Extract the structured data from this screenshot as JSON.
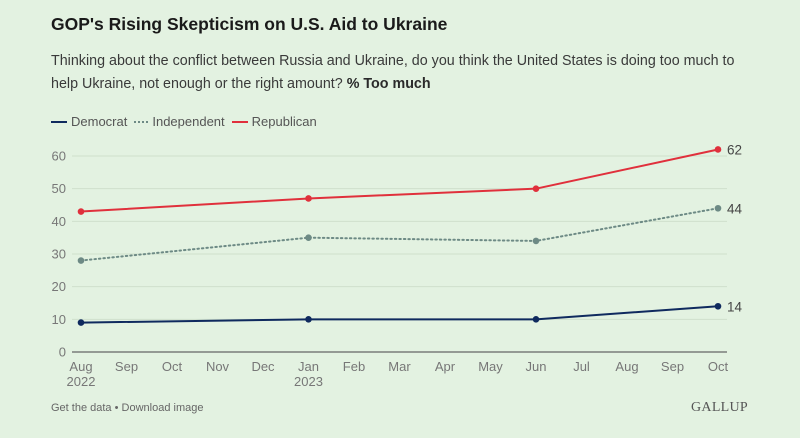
{
  "title": "GOP's Rising Skepticism on U.S. Aid to Ukraine",
  "subtitle_text": "Thinking about the conflict between Russia and Ukraine, do you think the United States is doing too much to help Ukraine, not enough or the right amount?",
  "subtitle_bold": "% Too much",
  "footer": {
    "get_data": "Get the data",
    "separator": "•",
    "download": "Download image",
    "brand": "GALLUP"
  },
  "chart_data": {
    "type": "line",
    "title": "GOP's Rising Skepticism on U.S. Aid to Ukraine",
    "ylabel": "% Too much",
    "xlabel": "",
    "ylim": [
      0,
      60
    ],
    "yticks": [
      0,
      10,
      20,
      30,
      40,
      50,
      60
    ],
    "grid": true,
    "legend_position": "top-left",
    "x_ticks": [
      {
        "month": 0,
        "label": "Aug",
        "year": "2022"
      },
      {
        "month": 1,
        "label": "Sep",
        "year": ""
      },
      {
        "month": 2,
        "label": "Oct",
        "year": ""
      },
      {
        "month": 3,
        "label": "Nov",
        "year": ""
      },
      {
        "month": 4,
        "label": "Dec",
        "year": ""
      },
      {
        "month": 5,
        "label": "Jan",
        "year": "2023"
      },
      {
        "month": 6,
        "label": "Feb",
        "year": ""
      },
      {
        "month": 7,
        "label": "Mar",
        "year": ""
      },
      {
        "month": 8,
        "label": "Apr",
        "year": ""
      },
      {
        "month": 9,
        "label": "May",
        "year": ""
      },
      {
        "month": 10,
        "label": "Jun",
        "year": ""
      },
      {
        "month": 11,
        "label": "Jul",
        "year": ""
      },
      {
        "month": 12,
        "label": "Aug",
        "year": ""
      },
      {
        "month": 13,
        "label": "Sep",
        "year": ""
      },
      {
        "month": 14,
        "label": "Oct",
        "year": ""
      }
    ],
    "x": [
      "Aug 2022",
      "Jan 2023",
      "Jun 2023",
      "Oct 2023"
    ],
    "x_month_index": [
      0,
      5,
      10,
      14
    ],
    "series": [
      {
        "name": "Democrat",
        "color": "#0f2a5e",
        "style": "solid",
        "values": [
          9,
          10,
          10,
          14
        ],
        "end_label": "14"
      },
      {
        "name": "Independent",
        "color": "#6d8a85",
        "style": "dotted",
        "values": [
          28,
          35,
          34,
          44
        ],
        "end_label": "44"
      },
      {
        "name": "Republican",
        "color": "#e0303c",
        "style": "solid",
        "values": [
          43,
          47,
          50,
          62
        ],
        "end_label": "62"
      }
    ]
  }
}
